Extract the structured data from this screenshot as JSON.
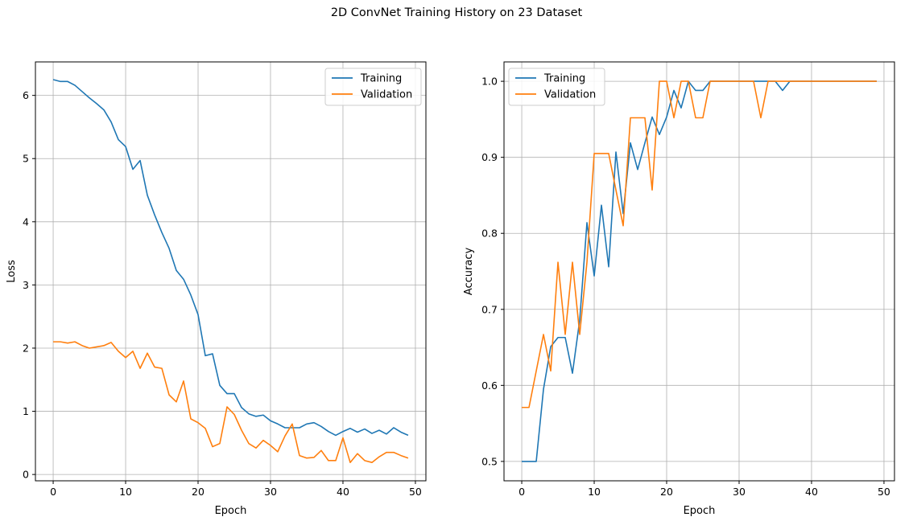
{
  "figure": {
    "suptitle": "2D ConvNet Training History on 23 Dataset"
  },
  "chart_data": [
    {
      "type": "line",
      "xlabel": "Epoch",
      "ylabel": "Loss",
      "xlim": [
        -2.45,
        51.45
      ],
      "ylim": [
        -0.1,
        6.53
      ],
      "xticks": [
        0,
        10,
        20,
        30,
        40,
        50
      ],
      "yticks": [
        0,
        1,
        2,
        3,
        4,
        5,
        6
      ],
      "grid": true,
      "legend_position": "upper right",
      "x": [
        0,
        1,
        2,
        3,
        4,
        5,
        6,
        7,
        8,
        9,
        10,
        11,
        12,
        13,
        14,
        15,
        16,
        17,
        18,
        19,
        20,
        21,
        22,
        23,
        24,
        25,
        26,
        27,
        28,
        29,
        30,
        31,
        32,
        33,
        34,
        35,
        36,
        37,
        38,
        39,
        40,
        41,
        42,
        43,
        44,
        45,
        46,
        47,
        48,
        49
      ],
      "series": [
        {
          "name": "Training",
          "color": "#1f77b4",
          "values": [
            6.25,
            6.22,
            6.22,
            6.16,
            6.06,
            5.96,
            5.87,
            5.77,
            5.58,
            5.3,
            5.19,
            4.83,
            4.97,
            4.42,
            4.11,
            3.83,
            3.58,
            3.23,
            3.09,
            2.84,
            2.53,
            1.88,
            1.91,
            1.41,
            1.28,
            1.28,
            1.06,
            0.96,
            0.92,
            0.94,
            0.85,
            0.8,
            0.74,
            0.74,
            0.74,
            0.8,
            0.82,
            0.76,
            0.68,
            0.62,
            0.68,
            0.73,
            0.67,
            0.72,
            0.65,
            0.7,
            0.64,
            0.74,
            0.67,
            0.62
          ]
        },
        {
          "name": "Validation",
          "color": "#ff7f0e",
          "values": [
            2.1,
            2.1,
            2.08,
            2.1,
            2.04,
            2.0,
            2.02,
            2.04,
            2.09,
            1.95,
            1.85,
            1.95,
            1.68,
            1.92,
            1.7,
            1.68,
            1.26,
            1.15,
            1.48,
            0.88,
            0.82,
            0.73,
            0.44,
            0.49,
            1.07,
            0.95,
            0.7,
            0.49,
            0.42,
            0.54,
            0.46,
            0.36,
            0.61,
            0.8,
            0.3,
            0.26,
            0.27,
            0.38,
            0.22,
            0.22,
            0.58,
            0.19,
            0.33,
            0.22,
            0.19,
            0.28,
            0.35,
            0.35,
            0.3,
            0.26
          ]
        }
      ]
    },
    {
      "type": "line",
      "xlabel": "Epoch",
      "ylabel": "Accuracy",
      "xlim": [
        -2.45,
        51.45
      ],
      "ylim": [
        0.4745,
        1.0255
      ],
      "xticks": [
        0,
        10,
        20,
        30,
        40,
        50
      ],
      "yticks": [
        0.5,
        0.6,
        0.7,
        0.8,
        0.9,
        1.0
      ],
      "ytick_labels": [
        "0.5",
        "0.6",
        "0.7",
        "0.8",
        "0.9",
        "1.0"
      ],
      "grid": true,
      "legend_position": "upper left",
      "x": [
        0,
        1,
        2,
        3,
        4,
        5,
        6,
        7,
        8,
        9,
        10,
        11,
        12,
        13,
        14,
        15,
        16,
        17,
        18,
        19,
        20,
        21,
        22,
        23,
        24,
        25,
        26,
        27,
        28,
        29,
        30,
        31,
        32,
        33,
        34,
        35,
        36,
        37,
        38,
        39,
        40,
        41,
        42,
        43,
        44,
        45,
        46,
        47,
        48,
        49
      ],
      "series": [
        {
          "name": "Training",
          "color": "#1f77b4",
          "values": [
            0.5,
            0.5,
            0.5,
            0.595,
            0.651,
            0.663,
            0.663,
            0.616,
            0.686,
            0.814,
            0.744,
            0.837,
            0.756,
            0.907,
            0.826,
            0.919,
            0.884,
            0.919,
            0.953,
            0.93,
            0.953,
            0.988,
            0.965,
            1.0,
            0.988,
            0.988,
            1.0,
            1.0,
            1.0,
            1.0,
            1.0,
            1.0,
            1.0,
            1.0,
            1.0,
            1.0,
            0.988,
            1.0,
            1.0,
            1.0,
            1.0,
            1.0,
            1.0,
            1.0,
            1.0,
            1.0,
            1.0,
            1.0,
            1.0,
            1.0
          ]
        },
        {
          "name": "Validation",
          "color": "#ff7f0e",
          "values": [
            0.571,
            0.571,
            0.619,
            0.667,
            0.619,
            0.762,
            0.667,
            0.762,
            0.667,
            0.762,
            0.905,
            0.905,
            0.905,
            0.857,
            0.81,
            0.952,
            0.952,
            0.952,
            0.857,
            1.0,
            1.0,
            0.952,
            1.0,
            1.0,
            0.952,
            0.952,
            1.0,
            1.0,
            1.0,
            1.0,
            1.0,
            1.0,
            1.0,
            0.952,
            1.0,
            1.0,
            1.0,
            1.0,
            1.0,
            1.0,
            1.0,
            1.0,
            1.0,
            1.0,
            1.0,
            1.0,
            1.0,
            1.0,
            1.0,
            1.0
          ]
        }
      ]
    }
  ]
}
